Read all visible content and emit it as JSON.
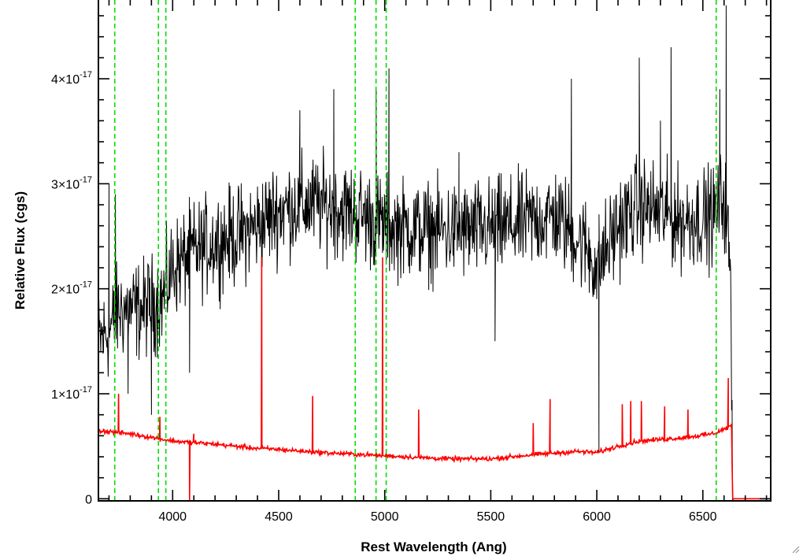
{
  "chart_data": {
    "type": "line",
    "title": "",
    "xlabel": "Rest Wavelength (Ang)",
    "ylabel": "Relative Flux (cgs)",
    "xlim": [
      3650,
      6820
    ],
    "ylim": [
      -0.02,
      4.75
    ],
    "y_scale_note": "x10^-17",
    "x_ticks": [
      4000,
      4500,
      5000,
      5500,
      6000,
      6500
    ],
    "y_ticks": [
      {
        "value": 0,
        "label": "0"
      },
      {
        "value": 1,
        "mantissa": "1",
        "base": "×10",
        "exp": "-17"
      },
      {
        "value": 2,
        "mantissa": "2",
        "base": "×10",
        "exp": "-17"
      },
      {
        "value": 3,
        "mantissa": "3",
        "base": "×10",
        "exp": "-17"
      },
      {
        "value": 4,
        "mantissa": "4",
        "base": "×10",
        "exp": "-17"
      }
    ],
    "series": [
      {
        "role": "spectrum",
        "color": "#000000",
        "continuum": [
          [
            3650,
            1.5
          ],
          [
            3700,
            1.6
          ],
          [
            3750,
            1.8
          ],
          [
            3850,
            1.8
          ],
          [
            3950,
            1.9
          ],
          [
            4000,
            2.2
          ],
          [
            4100,
            2.35
          ],
          [
            4200,
            2.45
          ],
          [
            4300,
            2.5
          ],
          [
            4400,
            2.6
          ],
          [
            4500,
            2.75
          ],
          [
            4600,
            2.8
          ],
          [
            4700,
            2.8
          ],
          [
            4800,
            2.75
          ],
          [
            4900,
            2.7
          ],
          [
            5000,
            2.6
          ],
          [
            5200,
            2.55
          ],
          [
            5400,
            2.55
          ],
          [
            5600,
            2.6
          ],
          [
            5800,
            2.7
          ],
          [
            5950,
            2.4
          ],
          [
            6000,
            2.2
          ],
          [
            6100,
            2.6
          ],
          [
            6200,
            2.8
          ],
          [
            6400,
            2.65
          ],
          [
            6550,
            2.7
          ],
          [
            6600,
            2.9
          ],
          [
            6630,
            2.2
          ],
          [
            6640,
            0.0
          ],
          [
            6820,
            0.0
          ]
        ],
        "noise": 0.33,
        "spikes": [
          [
            3700,
            3.0
          ],
          [
            3730,
            2.9
          ],
          [
            3790,
            1.0
          ],
          [
            3900,
            0.8
          ],
          [
            4080,
            1.2
          ],
          [
            4420,
            2.3
          ],
          [
            4600,
            3.7
          ],
          [
            4760,
            3.9
          ],
          [
            4960,
            3.9
          ],
          [
            5020,
            4.1
          ],
          [
            5350,
            3.3
          ],
          [
            5520,
            1.5
          ],
          [
            5880,
            4.0
          ],
          [
            6010,
            0.45
          ],
          [
            6200,
            4.2
          ],
          [
            6300,
            3.6
          ],
          [
            6350,
            4.3
          ],
          [
            6580,
            3.9
          ],
          [
            6610,
            4.7
          ]
        ]
      },
      {
        "role": "error",
        "color": "#ff0000",
        "continuum": [
          [
            3650,
            0.65
          ],
          [
            3800,
            0.62
          ],
          [
            4000,
            0.55
          ],
          [
            4200,
            0.52
          ],
          [
            4400,
            0.48
          ],
          [
            4500,
            0.47
          ],
          [
            4700,
            0.44
          ],
          [
            4900,
            0.42
          ],
          [
            5100,
            0.4
          ],
          [
            5300,
            0.38
          ],
          [
            5500,
            0.38
          ],
          [
            5700,
            0.42
          ],
          [
            5900,
            0.45
          ],
          [
            6000,
            0.44
          ],
          [
            6100,
            0.5
          ],
          [
            6200,
            0.55
          ],
          [
            6400,
            0.58
          ],
          [
            6550,
            0.62
          ],
          [
            6620,
            0.68
          ],
          [
            6635,
            0.7
          ],
          [
            6640,
            0.0
          ],
          [
            6820,
            0.0
          ]
        ],
        "noise": 0.015,
        "spikes": [
          [
            3745,
            1.0
          ],
          [
            3940,
            0.78
          ],
          [
            4080,
            -0.02
          ],
          [
            4100,
            0.62
          ],
          [
            4420,
            2.3
          ],
          [
            4660,
            0.98
          ],
          [
            4990,
            2.3
          ],
          [
            5160,
            0.85
          ],
          [
            5700,
            0.72
          ],
          [
            5780,
            0.95
          ],
          [
            6120,
            0.9
          ],
          [
            6160,
            0.93
          ],
          [
            6210,
            0.93
          ],
          [
            6320,
            0.88
          ],
          [
            6430,
            0.85
          ],
          [
            6620,
            1.15
          ]
        ]
      }
    ],
    "vlines": {
      "color": "#00dd00",
      "style": "dashed",
      "x": [
        3727,
        3933,
        3968,
        4861,
        4959,
        5007,
        6563
      ]
    },
    "grid": false,
    "legend": "none"
  }
}
